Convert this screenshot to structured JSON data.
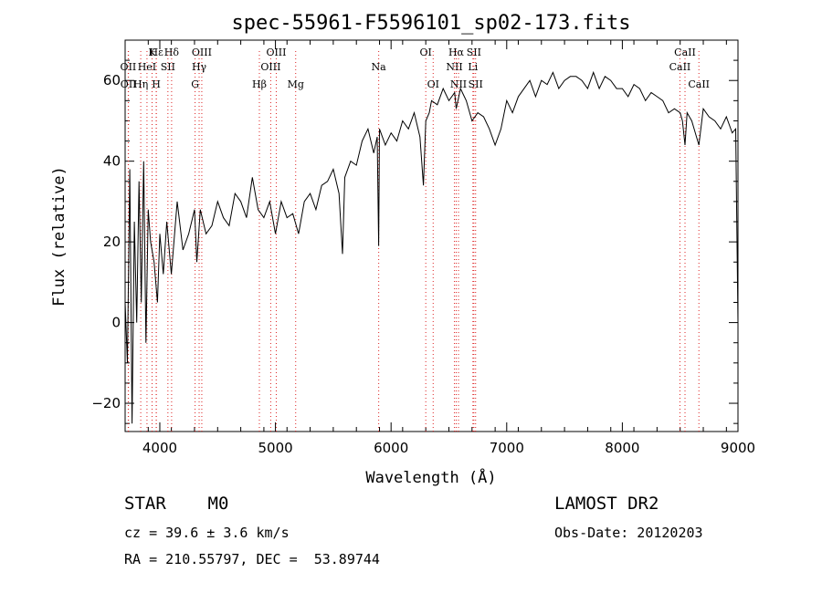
{
  "chart_data": {
    "type": "line",
    "title": "spec-55961-F5596101_sp02-173.fits",
    "xlabel": "Wavelength (Å)",
    "ylabel": "Flux (relative)",
    "xlim": [
      3700,
      9000
    ],
    "ylim": [
      -27,
      70
    ],
    "xticks": [
      4000,
      5000,
      6000,
      7000,
      8000,
      9000
    ],
    "yticks": [
      -20,
      0,
      20,
      40,
      60
    ],
    "grid": false,
    "spectrum": {
      "x": [
        3700,
        3720,
        3740,
        3760,
        3780,
        3800,
        3820,
        3840,
        3860,
        3880,
        3900,
        3920,
        3950,
        3980,
        4000,
        4030,
        4060,
        4100,
        4150,
        4200,
        4250,
        4300,
        4320,
        4350,
        4400,
        4450,
        4500,
        4550,
        4600,
        4650,
        4700,
        4750,
        4800,
        4850,
        4900,
        4950,
        5000,
        5050,
        5100,
        5150,
        5200,
        5250,
        5300,
        5350,
        5400,
        5450,
        5500,
        5550,
        5580,
        5600,
        5650,
        5700,
        5750,
        5800,
        5850,
        5880,
        5893,
        5900,
        5950,
        6000,
        6050,
        6100,
        6150,
        6200,
        6250,
        6280,
        6300,
        6330,
        6350,
        6400,
        6450,
        6500,
        6550,
        6563,
        6600,
        6650,
        6700,
        6750,
        6800,
        6850,
        6900,
        6950,
        7000,
        7050,
        7100,
        7150,
        7200,
        7250,
        7300,
        7350,
        7400,
        7450,
        7500,
        7550,
        7600,
        7650,
        7700,
        7750,
        7800,
        7850,
        7900,
        7950,
        8000,
        8050,
        8100,
        8150,
        8200,
        8250,
        8300,
        8350,
        8400,
        8450,
        8500,
        8520,
        8542,
        8560,
        8600,
        8662,
        8700,
        8750,
        8800,
        8850,
        8900,
        8950,
        8980,
        9000
      ],
      "y": [
        5,
        -10,
        38,
        -25,
        25,
        0,
        35,
        5,
        40,
        -5,
        28,
        20,
        15,
        5,
        22,
        12,
        25,
        12,
        30,
        18,
        22,
        28,
        15,
        28,
        22,
        24,
        30,
        26,
        24,
        32,
        30,
        26,
        36,
        28,
        26,
        30,
        22,
        30,
        26,
        27,
        22,
        30,
        32,
        28,
        34,
        35,
        38,
        32,
        17,
        36,
        40,
        39,
        45,
        48,
        42,
        46,
        19,
        48,
        44,
        47,
        45,
        50,
        48,
        52,
        46,
        34,
        50,
        52,
        55,
        54,
        58,
        55,
        57,
        53,
        58,
        55,
        50,
        52,
        51,
        48,
        44,
        48,
        55,
        52,
        56,
        58,
        60,
        56,
        60,
        59,
        62,
        58,
        60,
        61,
        61,
        60,
        58,
        62,
        58,
        61,
        60,
        58,
        58,
        56,
        59,
        58,
        55,
        57,
        56,
        55,
        52,
        53,
        52,
        50,
        44,
        52,
        50,
        44,
        53,
        51,
        50,
        48,
        51,
        47,
        48,
        0
      ],
      "name": ""
    },
    "lines": [
      {
        "label": "Hε",
        "lam": 3970,
        "row": 0,
        "style": "dotted"
      },
      {
        "label": "K",
        "lam": 3933,
        "row": 0,
        "style": "dotted"
      },
      {
        "label": "Hδ",
        "lam": 4102,
        "row": 0,
        "style": "dotted"
      },
      {
        "label": "OIII",
        "lam": 4363,
        "row": 0,
        "style": "dotted"
      },
      {
        "label": "OII",
        "lam": 3727,
        "row": 1,
        "style": "dotted"
      },
      {
        "label": "HeI",
        "lam": 3889,
        "row": 1,
        "style": "dotted"
      },
      {
        "label": "SII",
        "lam": 4070,
        "row": 1,
        "style": "dotted"
      },
      {
        "label": "Hγ",
        "lam": 4340,
        "row": 1,
        "style": "dotted"
      },
      {
        "label": "OII",
        "lam": 3729,
        "row": 2,
        "style": "dotted"
      },
      {
        "label": "Hη",
        "lam": 3835,
        "row": 2,
        "style": "dotted"
      },
      {
        "label": "H",
        "lam": 3969,
        "row": 2,
        "style": "dotted"
      },
      {
        "label": "G",
        "lam": 4305,
        "row": 2,
        "style": "dotted"
      },
      {
        "label": "OIII",
        "lam": 5007,
        "row": 0,
        "style": "dotted"
      },
      {
        "label": "OIII",
        "lam": 4959,
        "row": 1,
        "style": "dotted"
      },
      {
        "label": "Hβ",
        "lam": 4861,
        "row": 2,
        "style": "dotted"
      },
      {
        "label": "Mg",
        "lam": 5175,
        "row": 2,
        "style": "dotted"
      },
      {
        "label": "Na",
        "lam": 5893,
        "row": 1,
        "style": "dotted"
      },
      {
        "label": "OI",
        "lam": 6300,
        "row": 0,
        "style": "dotted"
      },
      {
        "label": "OI",
        "lam": 6364,
        "row": 2,
        "style": "dotted"
      },
      {
        "label": "Hα",
        "lam": 6563,
        "row": 0,
        "style": "dotted"
      },
      {
        "label": "SII",
        "lam": 6716,
        "row": 0,
        "style": "dotted"
      },
      {
        "label": "NII",
        "lam": 6548,
        "row": 1,
        "style": "dotted"
      },
      {
        "label": "Li",
        "lam": 6708,
        "row": 1,
        "style": "dotted"
      },
      {
        "label": "NII",
        "lam": 6583,
        "row": 2,
        "style": "dotted"
      },
      {
        "label": "SII",
        "lam": 6731,
        "row": 2,
        "style": "dotted"
      },
      {
        "label": "CaII",
        "lam": 8542,
        "row": 0,
        "style": "dotted"
      },
      {
        "label": "CaII",
        "lam": 8498,
        "row": 1,
        "style": "dotted"
      },
      {
        "label": "CaII",
        "lam": 8662,
        "row": 2,
        "style": "dotted"
      }
    ]
  },
  "info": {
    "class": "STAR    M0",
    "survey": "LAMOST DR2",
    "cz": "cz = 39.6 ± 3.6 km/s",
    "obs_date": "Obs-Date: 20120203",
    "coords": "RA = 210.55797, DEC =  53.89744"
  }
}
